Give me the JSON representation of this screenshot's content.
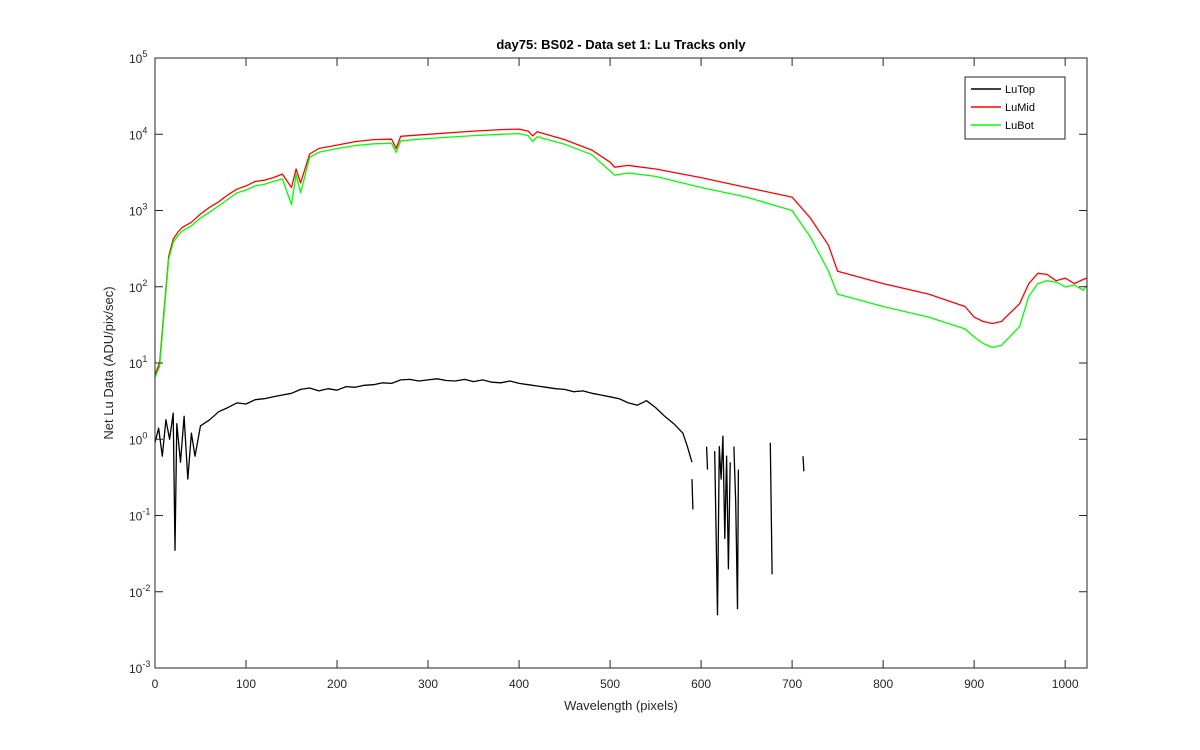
{
  "chart_data": {
    "type": "line",
    "title": "day75: BS02 - Data set 1: Lu Tracks only",
    "xlabel": "Wavelength (pixels)",
    "ylabel": "Net Lu Data (ADU/pix/sec)",
    "xlim": [
      0,
      1024
    ],
    "ylim": [
      0.001,
      100000
    ],
    "yscale": "log",
    "x_ticks": [
      "0",
      "100",
      "200",
      "300",
      "400",
      "500",
      "600",
      "700",
      "800",
      "900",
      "1000"
    ],
    "y_ticks": [
      {
        "base": "10",
        "exp": "-3"
      },
      {
        "base": "10",
        "exp": "-2"
      },
      {
        "base": "10",
        "exp": "-1"
      },
      {
        "base": "10",
        "exp": "0"
      },
      {
        "base": "10",
        "exp": "1"
      },
      {
        "base": "10",
        "exp": "2"
      },
      {
        "base": "10",
        "exp": "3"
      },
      {
        "base": "10",
        "exp": "4"
      },
      {
        "base": "10",
        "exp": "5"
      }
    ],
    "grid": false,
    "legend_position": "top-right",
    "series": [
      {
        "name": "LuTop",
        "color": "#000000",
        "segments": [
          {
            "x": [
              0,
              4,
              8,
              12,
              16,
              20,
              22,
              24,
              28,
              32,
              36,
              40,
              44,
              50,
              60,
              70,
              80,
              90,
              100,
              110,
              120,
              130,
              140,
              150,
              160,
              170,
              180,
              190,
              200,
              210,
              220,
              230,
              240,
              250,
              260,
              270,
              280,
              290,
              300,
              310,
              320,
              330,
              340,
              350,
              360,
              370,
              380,
              390,
              400,
              410,
              420,
              430,
              440,
              450,
              460,
              470,
              480,
              490,
              500,
              510,
              520,
              530,
              540,
              550,
              560,
              570,
              580,
              585,
              590
            ],
            "y": [
              0.9,
              1.4,
              0.6,
              1.8,
              1.0,
              2.2,
              0.035,
              1.6,
              0.5,
              2.0,
              0.3,
              1.2,
              0.6,
              1.5,
              1.8,
              2.3,
              2.6,
              3.0,
              2.9,
              3.3,
              3.4,
              3.6,
              3.8,
              4.0,
              4.5,
              4.7,
              4.3,
              4.6,
              4.4,
              4.9,
              4.8,
              5.1,
              5.2,
              5.5,
              5.4,
              6.0,
              6.1,
              5.8,
              6.0,
              6.2,
              5.9,
              5.8,
              6.1,
              5.7,
              6.0,
              5.6,
              5.5,
              5.8,
              5.4,
              5.2,
              5.0,
              4.8,
              4.6,
              4.5,
              4.2,
              4.3,
              4.0,
              3.8,
              3.6,
              3.4,
              3.0,
              2.8,
              3.2,
              2.6,
              2.0,
              1.6,
              1.2,
              0.8,
              0.5
            ]
          },
          {
            "x": [
              590,
              591
            ],
            "y": [
              0.3,
              0.12
            ]
          },
          {
            "x": [
              606,
              607
            ],
            "y": [
              0.8,
              0.4
            ]
          },
          {
            "x": [
              615,
              618,
              620,
              622,
              624,
              626,
              628,
              630,
              632
            ],
            "y": [
              0.7,
              0.005,
              0.8,
              0.3,
              1.1,
              0.05,
              0.6,
              0.02,
              0.5
            ]
          },
          {
            "x": [
              636,
              638,
              640,
              641
            ],
            "y": [
              0.8,
              0.15,
              0.006,
              0.4
            ]
          },
          {
            "x": [
              676,
              678
            ],
            "y": [
              0.9,
              0.017
            ]
          },
          {
            "x": [
              712,
              713
            ],
            "y": [
              0.6,
              0.38
            ]
          }
        ]
      },
      {
        "name": "LuMid",
        "color": "#ff0000",
        "x": [
          0,
          5,
          10,
          15,
          20,
          25,
          30,
          40,
          50,
          60,
          70,
          80,
          90,
          100,
          110,
          120,
          130,
          140,
          150,
          155,
          160,
          170,
          180,
          200,
          220,
          240,
          260,
          265,
          270,
          300,
          350,
          380,
          400,
          410,
          415,
          420,
          450,
          480,
          500,
          505,
          520,
          550,
          600,
          650,
          700,
          720,
          740,
          750,
          800,
          850,
          890,
          900,
          910,
          920,
          930,
          950,
          960,
          970,
          980,
          990,
          1000,
          1010,
          1020,
          1024
        ],
        "y": [
          7,
          10,
          50,
          250,
          420,
          520,
          600,
          700,
          900,
          1100,
          1300,
          1600,
          1900,
          2100,
          2400,
          2500,
          2700,
          3000,
          2000,
          3500,
          2300,
          5500,
          6500,
          7200,
          8000,
          8500,
          8600,
          6500,
          9400,
          10000,
          11000,
          11500,
          11700,
          11000,
          9500,
          10800,
          8500,
          6200,
          4300,
          3700,
          3900,
          3500,
          2700,
          2000,
          1500,
          800,
          350,
          160,
          110,
          80,
          55,
          40,
          35,
          33,
          35,
          60,
          110,
          150,
          145,
          120,
          130,
          110,
          125,
          130
        ]
      },
      {
        "name": "LuBot",
        "color": "#00ff00",
        "x": [
          0,
          5,
          10,
          15,
          20,
          25,
          30,
          40,
          50,
          60,
          70,
          80,
          90,
          100,
          110,
          120,
          130,
          140,
          150,
          155,
          160,
          170,
          180,
          200,
          220,
          240,
          260,
          265,
          270,
          300,
          350,
          380,
          400,
          410,
          415,
          420,
          450,
          480,
          500,
          505,
          520,
          550,
          600,
          650,
          700,
          720,
          740,
          750,
          800,
          850,
          890,
          900,
          910,
          920,
          930,
          950,
          960,
          970,
          980,
          990,
          1000,
          1010,
          1020,
          1024
        ],
        "y": [
          6.5,
          9,
          45,
          230,
          380,
          470,
          540,
          630,
          800,
          950,
          1150,
          1400,
          1700,
          1850,
          2100,
          2200,
          2400,
          2600,
          1200,
          3000,
          1700,
          5000,
          5800,
          6500,
          7100,
          7500,
          7600,
          5800,
          8200,
          8800,
          9600,
          10000,
          10200,
          9600,
          8000,
          9300,
          7400,
          5400,
          3300,
          2900,
          3100,
          2800,
          2000,
          1500,
          1000,
          450,
          160,
          80,
          55,
          40,
          28,
          22,
          18,
          16,
          17,
          30,
          75,
          110,
          120,
          115,
          100,
          105,
          90,
          105
        ]
      }
    ]
  }
}
